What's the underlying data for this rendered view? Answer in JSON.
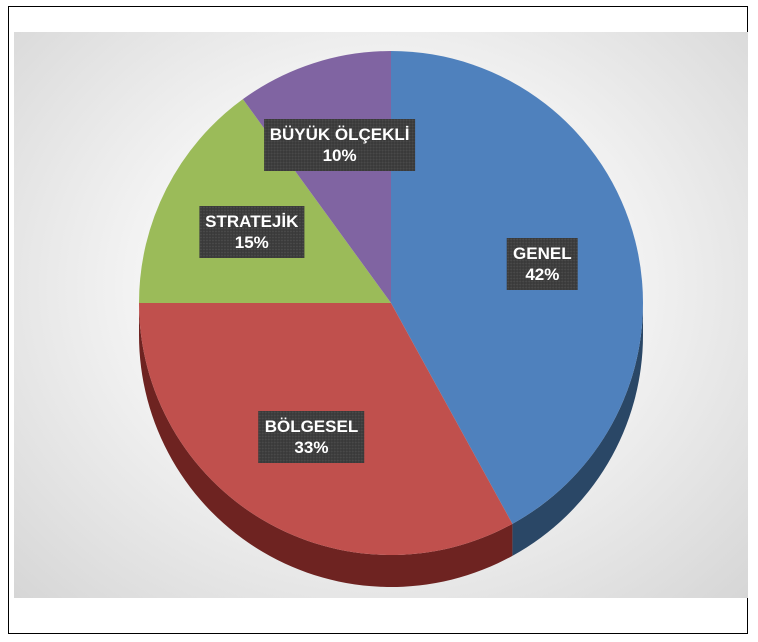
{
  "chart_data": {
    "type": "pie",
    "title": "",
    "slices": [
      {
        "label": "GENEL",
        "value": 42,
        "display": "42%",
        "color": "#4f81bd",
        "side": "#2a4766"
      },
      {
        "label": "BÖLGESEL",
        "value": 33,
        "display": "33%",
        "color": "#c0504d",
        "side": "#6e2321"
      },
      {
        "label": "STRATEJİK",
        "value": 15,
        "display": "15%",
        "color": "#9bbb59",
        "side": "#56692f"
      },
      {
        "label": "BÜYÜK ÖLÇEKLİ",
        "value": 10,
        "display": "10%",
        "color": "#8064a2",
        "side": "#47365b"
      }
    ]
  }
}
